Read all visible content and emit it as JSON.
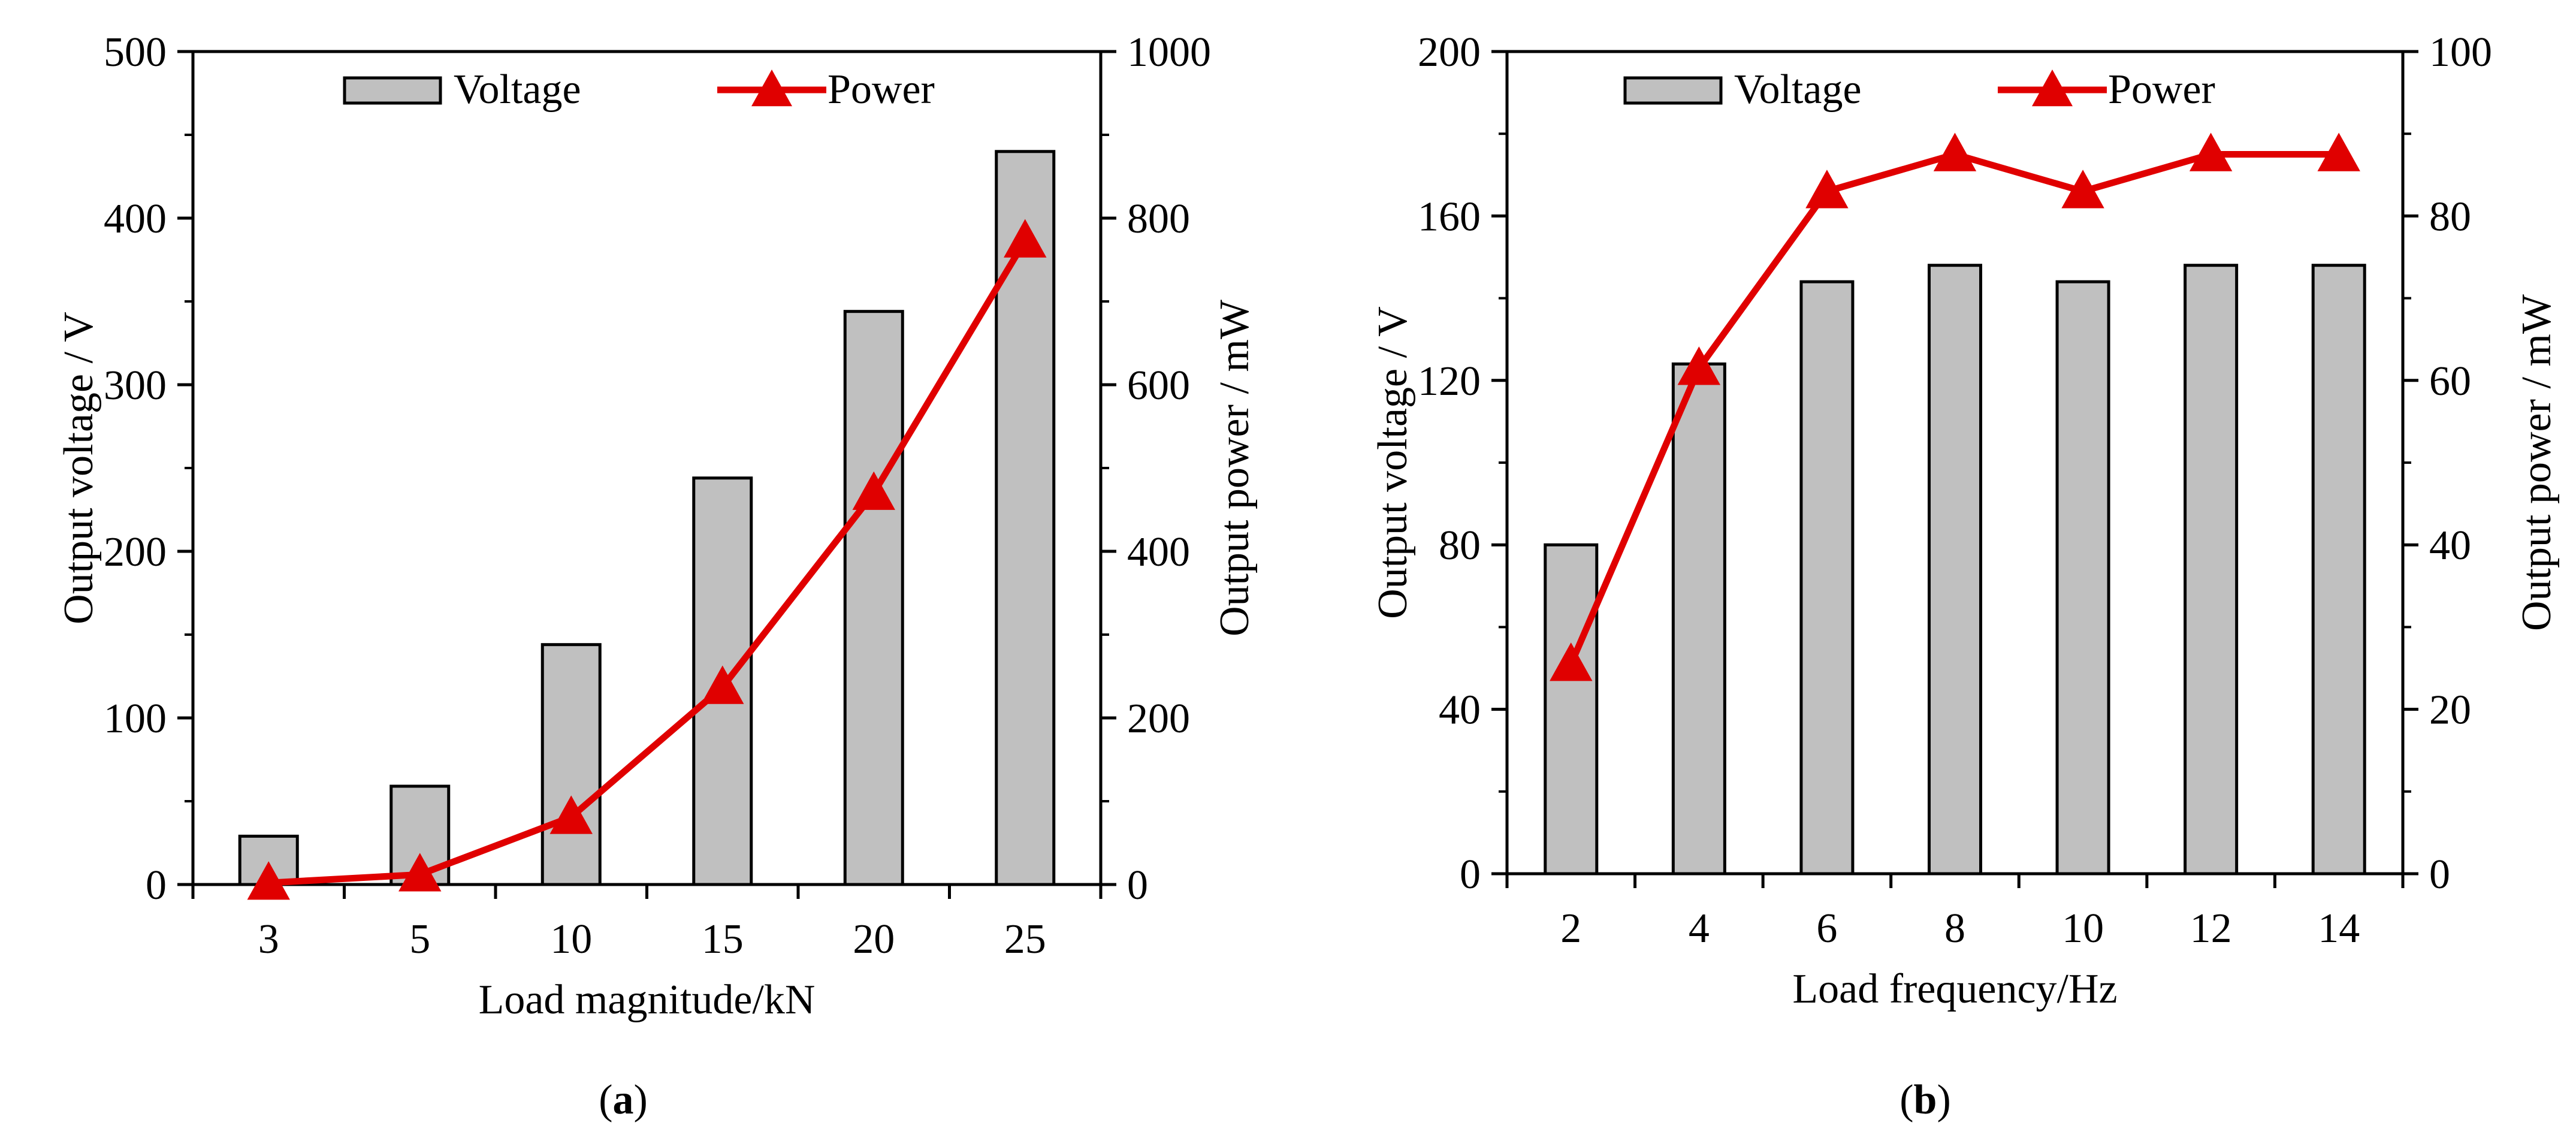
{
  "colors": {
    "bar_fill": "#c0c0c0",
    "bar_stroke": "#000000",
    "line": "#e00000",
    "axis": "#000000"
  },
  "chart_data": [
    {
      "type": "bar",
      "panel_label": "a",
      "categories": [
        "3",
        "5",
        "10",
        "15",
        "20",
        "25"
      ],
      "xlabel": "Load magnitude/kN",
      "ylabel": "Output voltage / V",
      "ylabel_right": "Output power / mW",
      "ylim": [
        0,
        500
      ],
      "ylim_right": [
        0,
        1000
      ],
      "yticks": [
        0,
        100,
        200,
        300,
        400,
        500
      ],
      "yticks_right": [
        0,
        200,
        400,
        600,
        800,
        1000
      ],
      "legend_position": "top-center",
      "series": [
        {
          "name": "Voltage",
          "type": "bar",
          "axis": "left",
          "values": [
            29,
            59,
            144,
            244,
            344,
            440
          ]
        },
        {
          "name": "Power",
          "type": "line",
          "marker": "triangle",
          "axis": "right",
          "values": [
            2,
            12,
            81,
            237,
            470,
            773
          ]
        }
      ]
    },
    {
      "type": "bar",
      "panel_label": "b",
      "categories": [
        "2",
        "4",
        "6",
        "8",
        "10",
        "12",
        "14"
      ],
      "xlabel": "Load frequency/Hz",
      "ylabel": "Output voltage / V",
      "ylabel_right": "Output power / mW",
      "ylim": [
        0,
        200
      ],
      "ylim_right": [
        0,
        100
      ],
      "yticks": [
        0,
        40,
        80,
        120,
        160,
        200
      ],
      "yticks_right": [
        0,
        20,
        40,
        60,
        80,
        100
      ],
      "legend_position": "top-center",
      "series": [
        {
          "name": "Voltage",
          "type": "bar",
          "axis": "left",
          "values": [
            80,
            124,
            144,
            148,
            144,
            148,
            148
          ]
        },
        {
          "name": "Power",
          "type": "line",
          "marker": "triangle",
          "axis": "right",
          "values": [
            25.5,
            61.5,
            83,
            87.5,
            83,
            87.5,
            87.5
          ]
        }
      ]
    }
  ]
}
